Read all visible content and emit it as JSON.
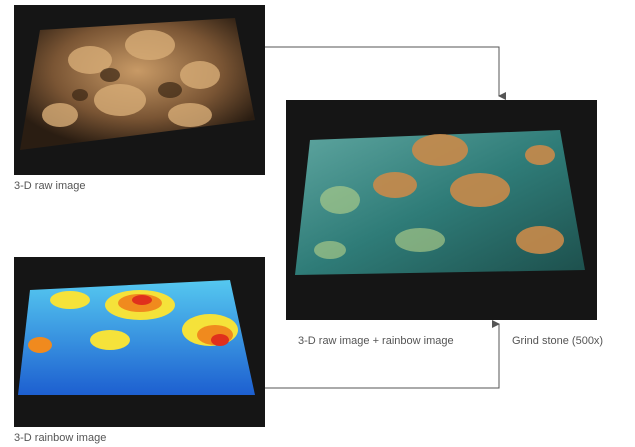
{
  "panels": [
    {
      "label": "3-D raw image"
    },
    {
      "label": "3-D rainbow image"
    },
    {
      "label": "3-D raw image + rainbow image"
    }
  ],
  "caption": "Grind stone (500x)"
}
